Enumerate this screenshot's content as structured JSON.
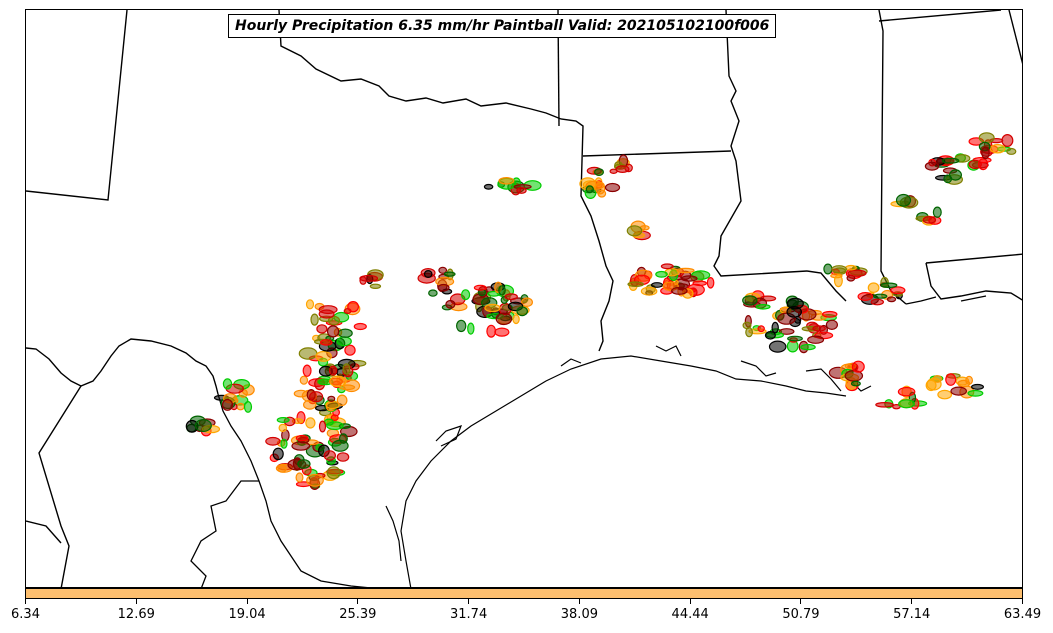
{
  "title": "Hourly Precipitation 6.35 mm/hr Paintball Valid: 202105102100f006",
  "colorbar": {
    "color": "#fdbf6f",
    "ticks": [
      "6.34",
      "12.69",
      "19.04",
      "25.39",
      "31.74",
      "38.09",
      "44.44",
      "50.79",
      "57.14",
      "63.49"
    ]
  },
  "member_colors": [
    "#00cc00",
    "#006400",
    "#808000",
    "#ff8c00",
    "#ff0000",
    "#8b0000",
    "#000000",
    "#ffa500",
    "#d40000"
  ]
}
